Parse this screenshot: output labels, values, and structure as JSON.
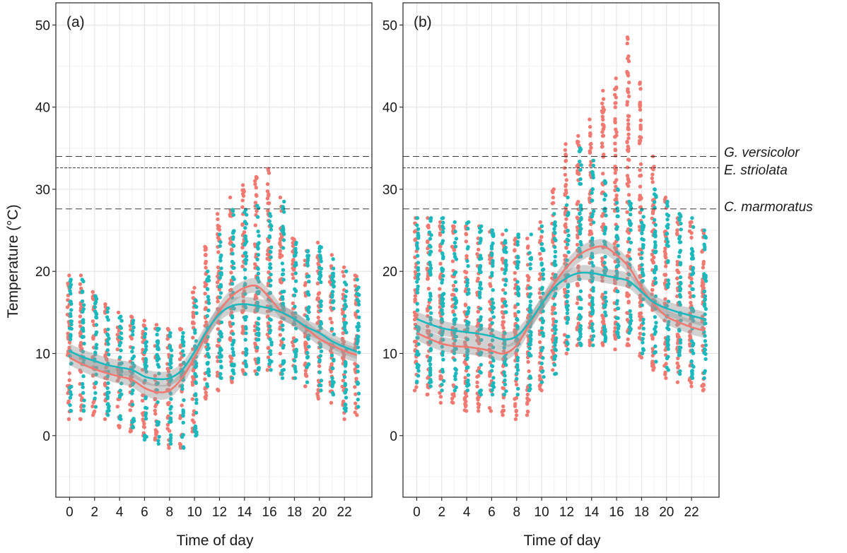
{
  "chart_data": {
    "type": "scatter",
    "ylabel": "Temperature (°C)",
    "xlabel": "Time of day",
    "ylim": [
      -7.5,
      52.7
    ],
    "xlim": [
      -1.1,
      24.2
    ],
    "x_ticks": [
      0,
      2,
      4,
      6,
      8,
      10,
      12,
      14,
      16,
      18,
      20,
      22
    ],
    "y_ticks": [
      0,
      10,
      20,
      30,
      40,
      50
    ],
    "grid": true,
    "colors": {
      "series_a": "#f07a72",
      "series_b": "#1bb8bd",
      "reference": "#222222"
    },
    "reference_lines": [
      {
        "label": "G. versicolor",
        "y": 34.0,
        "dash": "long"
      },
      {
        "label": "E. striolata",
        "y": 32.6,
        "dash": "short"
      },
      {
        "label": "C. marmoratus",
        "y": 27.6,
        "dash": "long"
      }
    ],
    "panels": [
      {
        "tag": "(a)",
        "series": [
          {
            "hours": [
              0,
              1,
              2,
              3,
              4,
              5,
              6,
              7,
              8,
              9,
              10,
              11,
              12,
              13,
              14,
              15,
              16,
              17,
              18,
              19,
              20,
              21,
              22,
              23
            ],
            "smooth": [
              9.5,
              8.7,
              8.1,
              7.6,
              7.2,
              6.8,
              5.8,
              5.3,
              5.5,
              7.0,
              9.5,
              12.5,
              15.2,
              17.0,
              18.0,
              18.2,
              16.8,
              15.0,
              14.2,
              13.0,
              11.8,
              11.0,
              10.3,
              9.8
            ],
            "point_min": [
              2.0,
              2.0,
              2.5,
              2.0,
              1.0,
              0.5,
              0.0,
              -0.5,
              -1.5,
              -1.5,
              0.5,
              4.5,
              5.5,
              6.5,
              7.5,
              7.5,
              8.0,
              7.5,
              7.0,
              6.0,
              4.5,
              4.0,
              2.0,
              2.5
            ],
            "point_max": [
              19.5,
              19.5,
              17.5,
              16.0,
              15.0,
              14.5,
              14.0,
              13.5,
              13.0,
              13.0,
              18.0,
              23.0,
              27.0,
              29.0,
              30.5,
              31.5,
              32.5,
              29.0,
              24.0,
              22.5,
              23.5,
              22.0,
              20.5,
              19.5
            ]
          },
          {
            "hours": [
              0,
              1,
              2,
              3,
              4,
              5,
              6,
              7,
              8,
              9,
              10,
              11,
              12,
              13,
              14,
              15,
              16,
              17,
              18,
              19,
              20,
              21,
              22,
              23
            ],
            "smooth": [
              10.3,
              9.6,
              9.1,
              8.6,
              8.3,
              8.0,
              7.2,
              6.9,
              7.0,
              8.0,
              10.2,
              12.8,
              14.8,
              15.8,
              16.0,
              15.8,
              15.5,
              15.0,
              14.2,
              13.2,
              12.5,
              11.5,
              10.8,
              10.2
            ],
            "point_min": [
              3.0,
              3.0,
              3.5,
              2.5,
              2.0,
              1.0,
              -0.5,
              -1.0,
              -1.0,
              -1.5,
              0.0,
              6.0,
              7.0,
              7.0,
              7.5,
              7.5,
              8.0,
              7.0,
              7.0,
              6.5,
              5.5,
              5.0,
              3.0,
              3.5
            ],
            "point_max": [
              19.0,
              19.0,
              17.0,
              15.5,
              14.5,
              14.0,
              13.0,
              13.0,
              12.5,
              12.5,
              16.5,
              20.0,
              24.5,
              27.5,
              27.5,
              28.0,
              27.0,
              28.5,
              23.5,
              22.5,
              23.0,
              21.5,
              20.0,
              19.0
            ]
          }
        ]
      },
      {
        "tag": "(b)",
        "series": [
          {
            "hours": [
              0,
              1,
              2,
              3,
              4,
              5,
              6,
              7,
              8,
              9,
              10,
              11,
              12,
              13,
              14,
              15,
              16,
              17,
              18,
              19,
              20,
              21,
              22,
              23
            ],
            "smooth": [
              12.5,
              11.8,
              11.2,
              10.9,
              10.8,
              10.6,
              10.3,
              10.0,
              11.0,
              13.5,
              16.0,
              18.5,
              20.5,
              22.0,
              22.8,
              23.0,
              22.0,
              20.5,
              18.0,
              16.0,
              14.5,
              13.8,
              13.2,
              12.8
            ],
            "point_min": [
              5.5,
              5.0,
              4.0,
              4.0,
              3.0,
              3.0,
              3.0,
              2.5,
              2.0,
              2.5,
              5.5,
              8.0,
              10.0,
              11.0,
              11.0,
              11.0,
              10.5,
              11.0,
              9.5,
              8.0,
              7.0,
              6.5,
              6.0,
              5.5
            ],
            "point_max": [
              26.5,
              26.5,
              26.0,
              25.5,
              25.5,
              25.5,
              25.0,
              24.5,
              24.0,
              24.0,
              26.0,
              30.0,
              35.5,
              36.5,
              38.5,
              42.0,
              43.5,
              48.5,
              43.0,
              34.0,
              29.0,
              26.5,
              26.0,
              25.0
            ]
          },
          {
            "hours": [
              0,
              1,
              2,
              3,
              4,
              5,
              6,
              7,
              8,
              9,
              10,
              11,
              12,
              13,
              14,
              15,
              16,
              17,
              18,
              19,
              20,
              21,
              22,
              23
            ],
            "smooth": [
              14.2,
              13.6,
              13.1,
              12.8,
              12.6,
              12.4,
              12.1,
              11.7,
              12.1,
              13.8,
              16.0,
              18.0,
              19.2,
              19.8,
              19.8,
              19.5,
              19.2,
              18.8,
              17.5,
              16.2,
              15.5,
              15.0,
              14.6,
              14.2
            ],
            "point_min": [
              6.5,
              6.0,
              5.5,
              5.5,
              5.5,
              5.0,
              5.0,
              5.0,
              5.0,
              5.5,
              6.5,
              7.5,
              10.5,
              11.0,
              11.0,
              11.5,
              12.0,
              12.5,
              10.0,
              9.0,
              8.0,
              7.5,
              7.0,
              7.0
            ],
            "point_max": [
              26.5,
              26.5,
              26.5,
              26.0,
              26.0,
              25.5,
              25.0,
              25.0,
              24.5,
              24.5,
              25.5,
              27.0,
              29.0,
              35.0,
              33.5,
              31.0,
              30.0,
              28.5,
              27.5,
              30.0,
              28.5,
              27.0,
              26.5,
              25.0
            ]
          }
        ]
      }
    ]
  }
}
